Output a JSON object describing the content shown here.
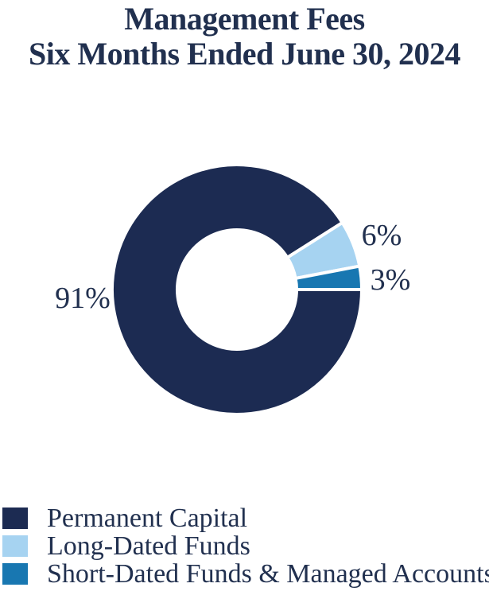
{
  "title": {
    "line1": "Management Fees",
    "line2": "Six Months Ended June 30, 2024"
  },
  "chart_data": {
    "type": "pie",
    "subtype": "donut",
    "title": "Management Fees Six Months Ended June 30, 2024",
    "hole_ratio": 0.5,
    "start_angle_deg": 0,
    "direction": "clockwise",
    "separator_color": "#FFFFFF",
    "legend_position": "bottom-left",
    "slices": [
      {
        "name": "Permanent Capital",
        "value": 91,
        "label": "91%",
        "color": "#1C2B52"
      },
      {
        "name": "Long-Dated Funds",
        "value": 6,
        "label": "6%",
        "color": "#A6D3F1"
      },
      {
        "name": "Short-Dated Funds & Managed Accounts",
        "value": 3,
        "label": "3%",
        "color": "#1877B1"
      }
    ]
  },
  "colors": {
    "text": "#21304F",
    "background": "#FFFFFF"
  }
}
